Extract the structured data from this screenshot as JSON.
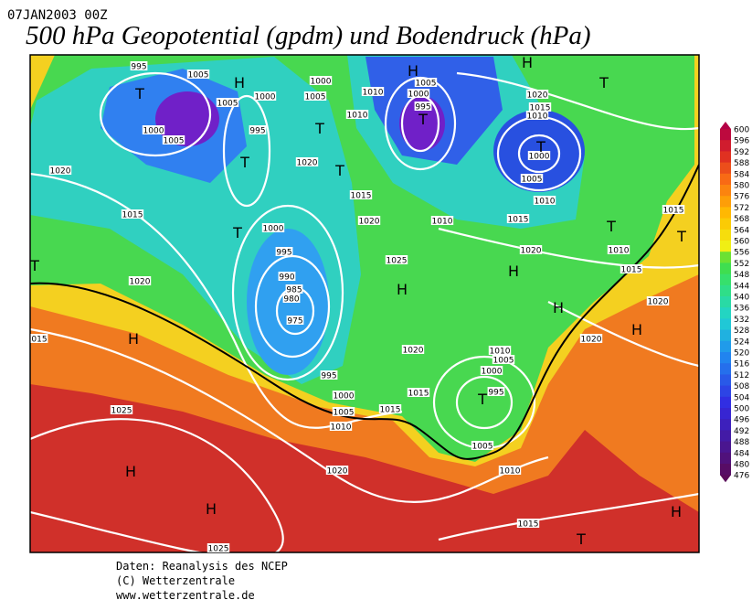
{
  "header": {
    "timestamp": "07JAN2003 00Z",
    "title": "500 hPa Geopotential (gpdm) und Bodendruck (hPa)"
  },
  "map": {
    "isobar_labels": [
      "995",
      "1005",
      "1005",
      "1000",
      "1000",
      "1005",
      "1010",
      "1000",
      "1005",
      "995",
      "1010",
      "1020",
      "1015",
      "1010",
      "1000",
      "1005",
      "995",
      "1000",
      "1005",
      "1010",
      "1020",
      "1020",
      "1015",
      "1015",
      "1020",
      "1010",
      "1015",
      "1015",
      "1000",
      "1020",
      "1010",
      "995",
      "1025",
      "1015",
      "990",
      "985",
      "980",
      "1020",
      "975",
      "1020",
      "015",
      "1020",
      "1020",
      "1010",
      "1005",
      "1000",
      "995",
      "995",
      "1000",
      "1015",
      "1005",
      "1015",
      "1010",
      "1025",
      "1005",
      "1020",
      "1010",
      "1015",
      "1025"
    ],
    "pressure_centers": [
      "T",
      "H",
      "T",
      "T",
      "H",
      "T",
      "H",
      "T",
      "T",
      "T",
      "T",
      "T",
      "T",
      "T",
      "H",
      "H",
      "H",
      "H",
      "H",
      "T",
      "H",
      "H",
      "T",
      "H"
    ]
  },
  "colorbar": {
    "levels": [
      600,
      596,
      592,
      588,
      584,
      580,
      576,
      572,
      568,
      564,
      560,
      556,
      552,
      548,
      544,
      540,
      536,
      532,
      528,
      524,
      520,
      516,
      512,
      508,
      504,
      500,
      496,
      492,
      488,
      484,
      480,
      476
    ]
  },
  "footer": {
    "lines": [
      "Daten: Reanalysis des NCEP",
      "(C) Wetterzentrale",
      "www.wetterzentrale.de"
    ]
  }
}
